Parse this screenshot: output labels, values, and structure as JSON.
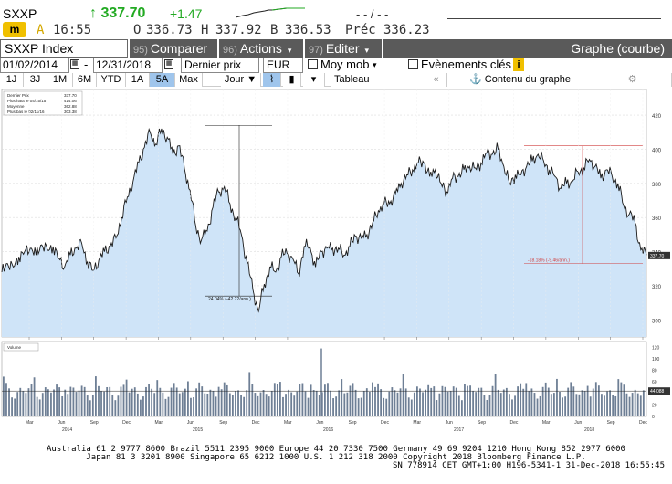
{
  "quote": {
    "ticker": "SXXP",
    "arrow": "↑",
    "last": "337.70",
    "change": "+1.47",
    "dashes": "- - / - -",
    "row2": {
      "flag": "A",
      "time": "16:55",
      "open_label": "O",
      "open": "336.73",
      "high_label": "H",
      "high": "337.92",
      "low_label": "B",
      "low": "336.53",
      "prev_label": "Préc",
      "prev": "336.23"
    }
  },
  "toolbar": {
    "index": "SXXP Index",
    "compare_num": "95)",
    "compare": "Comparer",
    "actions_num": "96)",
    "actions": "Actions",
    "edit_num": "97)",
    "edit": "Editer",
    "graph_title": "Graphe (courbe)"
  },
  "controls": {
    "start_date": "01/02/2014",
    "end_date": "12/31/2018",
    "field": "Dernier prix",
    "currency": "EUR",
    "moy_mob": "Moy mob",
    "events": "Evènements clés",
    "info": "i"
  },
  "periods": {
    "items": [
      "1J",
      "3J",
      "1M",
      "6M",
      "YTD",
      "1A",
      "5A",
      "Max"
    ],
    "active": "5A",
    "freq": "Jour",
    "tableau": "Tableau",
    "contenu": "Contenu du graphe"
  },
  "legend": {
    "items": [
      {
        "label": "Dernier Prix",
        "value": "337.70"
      },
      {
        "label": "Plus haut le 04/15/15",
        "value": "414.06"
      },
      {
        "label": "Moyenne",
        "value": "362.88"
      },
      {
        "label": "Plus bas le 02/11/16",
        "value": "303.38"
      }
    ],
    "volume_label": "Volume"
  },
  "annotations": {
    "drop1": "24.04% (-42.22/ann.)",
    "drop2": "-18.18% (-9.46/ann.)",
    "last_tag": "337.70",
    "vol_tag": "44.088"
  },
  "chart_data": {
    "type": "area",
    "title": "",
    "ylim": [
      290,
      435
    ],
    "yticks": [
      300,
      320,
      340,
      360,
      380,
      400,
      420
    ],
    "vol_ylim": [
      0,
      130
    ],
    "vol_yticks": [
      0,
      20,
      40,
      60,
      80,
      100,
      120
    ],
    "x_month_labels": [
      "Mar",
      "Jun",
      "Sep",
      "Dec",
      "Mar",
      "Jun",
      "Sep",
      "Dec",
      "Mar",
      "Jun",
      "Sep",
      "Dec",
      "Mar",
      "Jun",
      "Sep",
      "Dec",
      "Mar",
      "Jun",
      "Sep",
      "Dec"
    ],
    "x_year_labels": [
      "2014",
      "2015",
      "2016",
      "2017",
      "2018"
    ],
    "series": [
      {
        "values": [
          328,
          333,
          331,
          337,
          340,
          342,
          338,
          344,
          341,
          343,
          336,
          331,
          338,
          342,
          345,
          334,
          329,
          335,
          340,
          343,
          348,
          360,
          372,
          381,
          392,
          401,
          410,
          403,
          412,
          407,
          397,
          402,
          389,
          376,
          355,
          347,
          352,
          366,
          375,
          378,
          368,
          360,
          350,
          333,
          318,
          305,
          321,
          331,
          328,
          337,
          339,
          336,
          327,
          343,
          343,
          331,
          340,
          342,
          342,
          342,
          338,
          343,
          349,
          348,
          350,
          357,
          364,
          368,
          368,
          374,
          380,
          385,
          388,
          392,
          392,
          384,
          388,
          380,
          375,
          383,
          384,
          388,
          390,
          389,
          392,
          398,
          397,
          400,
          390,
          380,
          385,
          385,
          390,
          393,
          397,
          393,
          388,
          384,
          377,
          380,
          381,
          387,
          389,
          394,
          390,
          383,
          388,
          384,
          380,
          367,
          362,
          357,
          341,
          338
        ]
      }
    ],
    "volume_mean": 44.088
  },
  "footer": {
    "line1": "Australia 61 2 9777 8600 Brazil 5511 2395 9000 Europe 44 20 7330 7500 Germany 49 69 9204 1210 Hong Kong 852 2977 6000",
    "line2": "Japan 81 3 3201 8900       Singapore 65 6212 1000       U.S. 1 212 318 2000         Copyright 2018 Bloomberg Finance L.P.",
    "line3": "SN 778914 CET  GMT+1:00 H196-5341-1 31-Dec-2018 16:55:45"
  },
  "colors": {
    "fill": "#cfe4f8",
    "line": "#1a1a1a",
    "volume_bar": "#6e7f95",
    "toolbar": "#5a5a5a",
    "up": "#22aa22",
    "annotation_red": "#d04040",
    "highlight": "#9fc5ec"
  }
}
